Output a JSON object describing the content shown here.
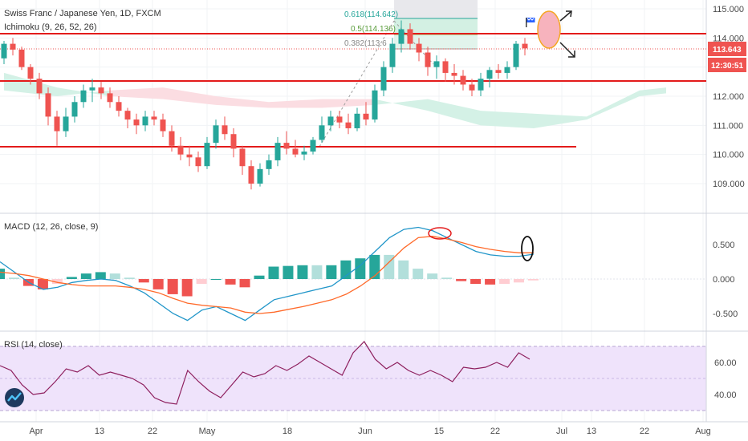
{
  "header": {
    "symbol_line": "Swiss Franc / Japanese Yen, 1D, FXCM",
    "ichimoku_label": "Ichimoku (9, 26, 52, 26)",
    "macd_label": "MACD (12, 26, close, 9)",
    "rsi_label": "RSI (14, close)"
  },
  "price_axis": {
    "ticks": [
      "115.000",
      "114.000",
      "113.000",
      "112.000",
      "111.000",
      "110.000",
      "109.000"
    ],
    "current_price": "113.643",
    "countdown": "12:30:51"
  },
  "macd_axis": {
    "ticks": [
      "0.500",
      "0.000",
      "-0.500"
    ]
  },
  "rsi_axis": {
    "ticks": [
      "60.00",
      "40.00"
    ]
  },
  "time_axis": {
    "ticks": [
      "Apr",
      "13",
      "22",
      "May",
      "18",
      "Jun",
      "15",
      "22",
      "Jul",
      "13",
      "22",
      "Aug"
    ]
  },
  "fib_labels": [
    "0.618(114.642)",
    "0.5(114.136)",
    "0.382(113.6"
  ],
  "colors": {
    "up": "#26a69a",
    "down": "#ef5350",
    "hline": "#e31b1b",
    "macd_line": "#2196c9",
    "signal_line": "#ff6a2a",
    "rsi_line": "#8e1f5e",
    "rsi_band": "#efe3fb",
    "cloud_green": "#d4f1e6",
    "cloud_red": "#fbdde2",
    "price_tag": "#ef5350"
  },
  "icons": {
    "flag": "flag-icon",
    "logo": "tradingview-logo-icon"
  },
  "chart_data": [
    {
      "type": "candlestick",
      "title": "Swiss Franc / Japanese Yen, 1D, FXCM",
      "xlabel": "",
      "ylabel": "",
      "ylim": [
        108.3,
        115.3
      ],
      "x_ticks": [
        "Apr",
        "13",
        "22",
        "May",
        "18",
        "Jun",
        "15",
        "22",
        "Jul",
        "13",
        "22",
        "Aug"
      ],
      "y_ticks": [
        115.0,
        114.0,
        113.0,
        112.0,
        111.0,
        110.0,
        109.0
      ],
      "last_price": 113.643,
      "horizontal_levels": [
        114.15,
        112.55,
        110.3
      ],
      "fib_levels": [
        114.642,
        114.136,
        113.6
      ],
      "candles": [
        [
          113.3,
          113.9,
          113.1,
          113.8
        ],
        [
          113.8,
          114.0,
          113.4,
          113.6
        ],
        [
          113.6,
          113.7,
          112.9,
          113.0
        ],
        [
          113.0,
          113.1,
          112.4,
          112.6
        ],
        [
          112.6,
          112.8,
          111.9,
          112.1
        ],
        [
          112.1,
          112.3,
          111.0,
          111.3
        ],
        [
          111.3,
          111.5,
          110.3,
          110.8
        ],
        [
          110.8,
          111.6,
          110.6,
          111.3
        ],
        [
          111.3,
          112.0,
          111.1,
          111.8
        ],
        [
          111.8,
          112.4,
          111.6,
          112.2
        ],
        [
          112.2,
          112.6,
          111.8,
          112.3
        ],
        [
          112.3,
          112.5,
          111.9,
          112.1
        ],
        [
          112.1,
          112.3,
          111.6,
          111.8
        ],
        [
          111.8,
          112.0,
          111.3,
          111.5
        ],
        [
          111.5,
          111.6,
          110.9,
          111.2
        ],
        [
          111.2,
          111.4,
          110.7,
          111.0
        ],
        [
          111.0,
          111.5,
          110.8,
          111.3
        ],
        [
          111.3,
          111.5,
          111.0,
          111.2
        ],
        [
          111.2,
          111.4,
          110.6,
          110.8
        ],
        [
          110.8,
          111.0,
          110.1,
          110.3
        ],
        [
          110.3,
          110.6,
          109.8,
          110.0
        ],
        [
          110.0,
          110.3,
          109.6,
          109.9
        ],
        [
          109.9,
          110.1,
          109.4,
          109.6
        ],
        [
          109.6,
          110.6,
          109.5,
          110.4
        ],
        [
          110.4,
          111.2,
          110.2,
          111.0
        ],
        [
          111.0,
          111.3,
          110.5,
          110.7
        ],
        [
          110.7,
          110.9,
          109.9,
          110.2
        ],
        [
          110.2,
          110.3,
          109.3,
          109.6
        ],
        [
          109.6,
          109.8,
          108.8,
          109.0
        ],
        [
          109.0,
          109.7,
          108.9,
          109.5
        ],
        [
          109.5,
          110.0,
          109.3,
          109.8
        ],
        [
          109.8,
          110.6,
          109.6,
          110.4
        ],
        [
          110.4,
          110.8,
          110.0,
          110.2
        ],
        [
          110.2,
          110.5,
          109.9,
          110.0
        ],
        [
          110.0,
          110.3,
          109.8,
          110.1
        ],
        [
          110.1,
          110.6,
          110.0,
          110.5
        ],
        [
          110.5,
          111.3,
          110.4,
          111.0
        ],
        [
          111.0,
          111.5,
          110.8,
          111.3
        ],
        [
          111.3,
          111.5,
          110.9,
          111.1
        ],
        [
          111.1,
          111.4,
          110.7,
          110.9
        ],
        [
          110.9,
          111.6,
          110.8,
          111.4
        ],
        [
          111.4,
          111.8,
          111.0,
          111.2
        ],
        [
          111.2,
          112.4,
          111.1,
          112.2
        ],
        [
          112.2,
          113.2,
          112.0,
          113.0
        ],
        [
          113.0,
          114.0,
          112.8,
          113.8
        ],
        [
          113.8,
          114.6,
          113.5,
          114.3
        ],
        [
          114.3,
          114.5,
          113.6,
          113.8
        ],
        [
          113.8,
          114.0,
          113.2,
          113.5
        ],
        [
          113.5,
          113.7,
          112.7,
          113.0
        ],
        [
          113.0,
          113.4,
          112.6,
          113.2
        ],
        [
          113.2,
          113.3,
          112.5,
          112.8
        ],
        [
          112.8,
          113.1,
          112.4,
          112.7
        ],
        [
          112.7,
          112.9,
          112.2,
          112.4
        ],
        [
          112.4,
          112.6,
          112.0,
          112.2
        ],
        [
          112.2,
          112.8,
          112.0,
          112.6
        ],
        [
          112.6,
          113.0,
          112.3,
          112.9
        ],
        [
          112.9,
          113.1,
          112.6,
          112.8
        ],
        [
          112.8,
          113.2,
          112.6,
          113.0
        ],
        [
          113.0,
          113.9,
          112.9,
          113.8
        ],
        [
          113.8,
          114.0,
          113.4,
          113.643
        ]
      ],
      "cloud": {
        "x": [
          0,
          6,
          12,
          18,
          24,
          30,
          36,
          42,
          48,
          54,
          60,
          66,
          72,
          75
        ],
        "span_a": [
          112.8,
          112.3,
          112.0,
          111.9,
          111.7,
          111.6,
          111.6,
          111.7,
          111.9,
          111.5,
          111.4,
          111.3,
          112.2,
          112.3
        ],
        "span_b": [
          112.2,
          112.0,
          112.2,
          112.3,
          112.0,
          111.8,
          111.9,
          111.9,
          111.5,
          111.0,
          110.9,
          111.2,
          112.0,
          112.1
        ]
      }
    },
    {
      "type": "line",
      "title": "MACD (12, 26, close, 9)",
      "ylim": [
        -0.7,
        0.9
      ],
      "y_ticks": [
        0.5,
        0.0,
        -0.5
      ],
      "series": [
        {
          "values": [
            0.25,
            0.1,
            -0.05,
            -0.15,
            -0.12,
            -0.05,
            -0.02,
            0.0,
            -0.02,
            -0.1,
            -0.2,
            -0.35,
            -0.5,
            -0.6,
            -0.45,
            -0.4,
            -0.5,
            -0.6,
            -0.45,
            -0.3,
            -0.25,
            -0.2,
            -0.15,
            -0.1,
            0.05,
            0.2,
            0.4,
            0.6,
            0.72,
            0.75,
            0.7,
            0.6,
            0.5,
            0.4,
            0.35,
            0.33,
            0.33,
            0.36
          ]
        },
        {
          "values": [
            0.1,
            0.08,
            0.05,
            0.0,
            -0.05,
            -0.08,
            -0.1,
            -0.1,
            -0.1,
            -0.12,
            -0.15,
            -0.2,
            -0.28,
            -0.35,
            -0.38,
            -0.4,
            -0.42,
            -0.48,
            -0.5,
            -0.48,
            -0.44,
            -0.4,
            -0.35,
            -0.3,
            -0.22,
            -0.1,
            0.05,
            0.25,
            0.45,
            0.6,
            0.62,
            0.58,
            0.53,
            0.47,
            0.43,
            0.4,
            0.38,
            0.38
          ]
        }
      ]
    },
    {
      "type": "line",
      "title": "RSI (14, close)",
      "ylim": [
        27,
        73
      ],
      "y_ticks": [
        60.0,
        40.0
      ],
      "band": [
        30,
        70
      ],
      "series": [
        {
          "values": [
            58,
            55,
            46,
            40,
            41,
            48,
            56,
            54,
            58,
            52,
            54,
            52,
            50,
            46,
            38,
            35,
            34,
            55,
            48,
            42,
            38,
            46,
            54,
            51,
            53,
            58,
            55,
            59,
            64,
            60,
            56,
            52,
            66,
            73,
            62,
            56,
            60,
            55,
            52,
            55,
            52,
            48,
            57,
            56,
            57,
            60,
            57,
            66,
            62
          ]
        }
      ]
    }
  ]
}
